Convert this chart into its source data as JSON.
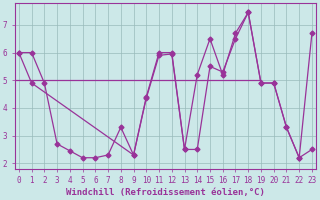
{
  "xlabel": "Windchill (Refroidissement éolien,°C)",
  "background_color": "#cce8e8",
  "line1_x": [
    0,
    1,
    2,
    3,
    4,
    5,
    6,
    7,
    8,
    9,
    10,
    11,
    12,
    13,
    14,
    15,
    16,
    17,
    18,
    19,
    20,
    21,
    22,
    23
  ],
  "line1_y": [
    6.0,
    6.0,
    4.9,
    2.7,
    2.45,
    2.2,
    2.2,
    2.3,
    3.3,
    2.3,
    4.4,
    6.0,
    6.0,
    2.5,
    2.5,
    5.5,
    5.3,
    6.5,
    7.45,
    4.9,
    4.9,
    3.3,
    2.2,
    2.5
  ],
  "line2_x": [
    0,
    1,
    9,
    10,
    11,
    12,
    13,
    14,
    15,
    16,
    17,
    18,
    19,
    20,
    21,
    22,
    23
  ],
  "line2_y": [
    6.0,
    4.9,
    2.3,
    4.35,
    5.9,
    5.95,
    2.5,
    5.2,
    6.5,
    5.2,
    6.7,
    7.45,
    4.9,
    4.9,
    3.3,
    2.2,
    6.7
  ],
  "line_color": "#993399",
  "marker": "D",
  "markersize": 2.5,
  "linewidth": 0.9,
  "xlim": [
    -0.3,
    23.3
  ],
  "ylim": [
    1.8,
    7.8
  ],
  "yticks": [
    2,
    3,
    4,
    5,
    6,
    7
  ],
  "xticks": [
    0,
    1,
    2,
    3,
    4,
    5,
    6,
    7,
    8,
    9,
    10,
    11,
    12,
    13,
    14,
    15,
    16,
    17,
    18,
    19,
    20,
    21,
    22,
    23
  ],
  "grid_color": "#99bbbb",
  "axis_color": "#993399",
  "label_color": "#993399",
  "tick_fontsize": 5.5,
  "xlabel_fontsize": 6.5,
  "hline_y": 5.0,
  "hline_x_start": 0,
  "hline_x_end": 19
}
